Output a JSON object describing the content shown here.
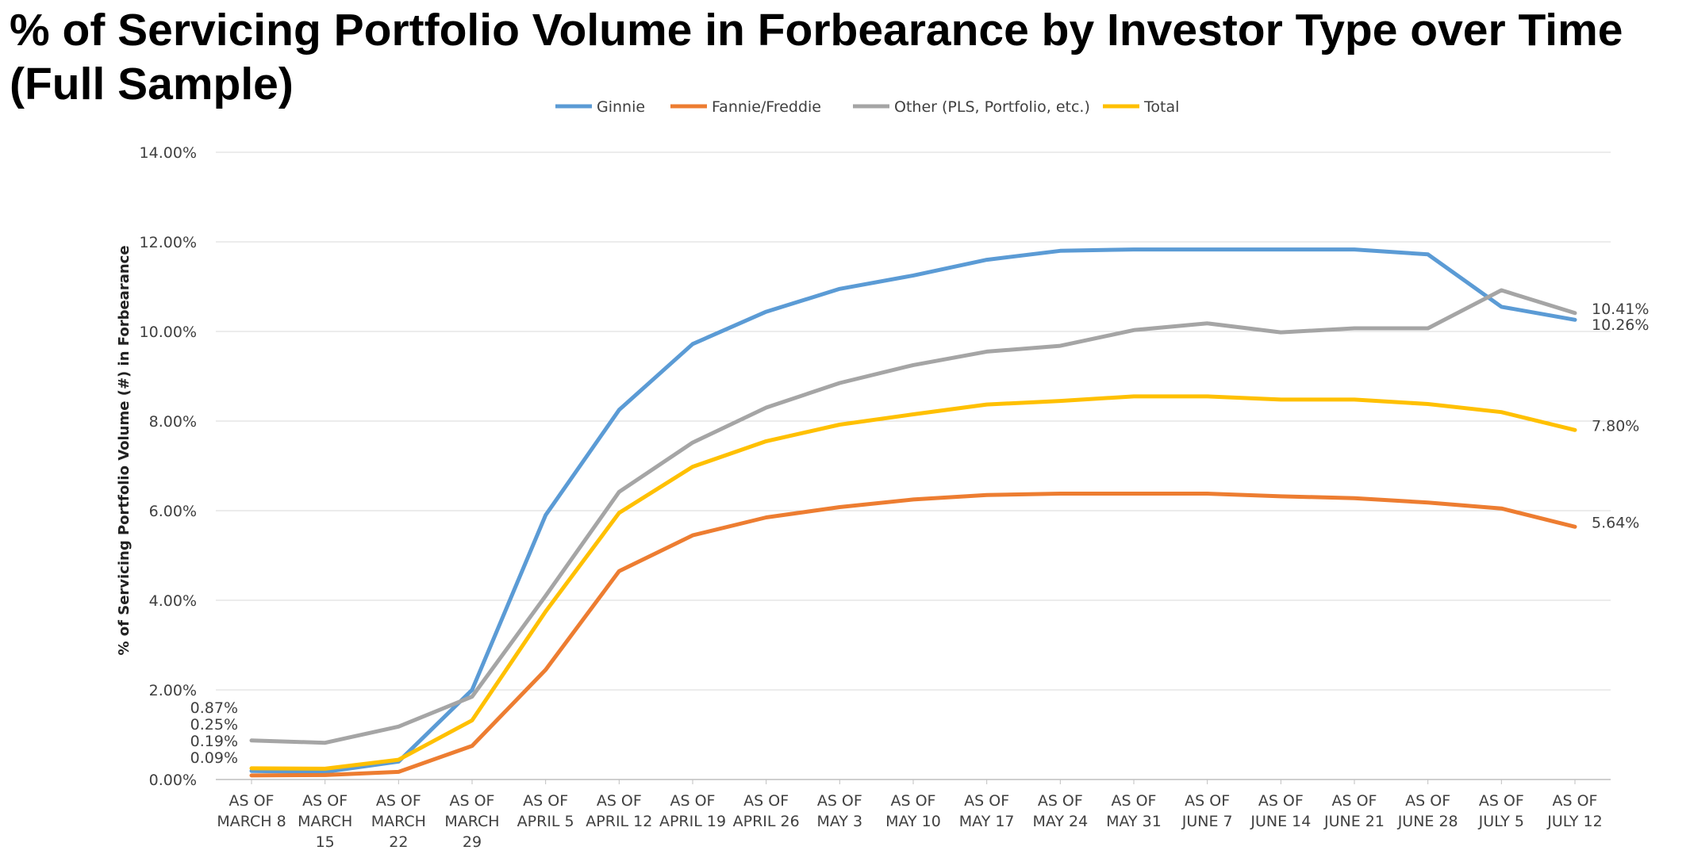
{
  "chart_data": {
    "type": "line",
    "title_lines": [
      "% of Servicing Portfolio Volume in Forbearance by Investor Type over Time",
      "(Full Sample)"
    ],
    "ylabel": "% of Servicing Portfolio Volume (#) in Forbearance",
    "xlabel": "",
    "ylim": [
      0,
      14
    ],
    "y_unit": "%",
    "grid": true,
    "legend_position": "top",
    "categories": [
      "AS OF MARCH 8",
      "AS OF MARCH 15",
      "AS OF MARCH 22",
      "AS OF MARCH 29",
      "AS OF APRIL 5",
      "AS OF APRIL 12",
      "AS OF APRIL 19",
      "AS OF APRIL 26",
      "AS OF MAY 3",
      "AS OF MAY 10",
      "AS OF MAY 17",
      "AS OF MAY 24",
      "AS OF MAY 31",
      "AS OF JUNE 7",
      "AS OF JUNE 14",
      "AS OF JUNE 21",
      "AS OF JUNE 28",
      "AS OF JULY 5",
      "AS OF JULY 12"
    ],
    "category_label_lines": [
      [
        "AS OF",
        "MARCH 8"
      ],
      [
        "AS OF",
        "MARCH",
        "15"
      ],
      [
        "AS OF",
        "MARCH",
        "22"
      ],
      [
        "AS OF",
        "MARCH",
        "29"
      ],
      [
        "AS OF",
        "APRIL 5"
      ],
      [
        "AS OF",
        "APRIL 12"
      ],
      [
        "AS OF",
        "APRIL 19"
      ],
      [
        "AS OF",
        "APRIL 26"
      ],
      [
        "AS OF",
        "MAY 3"
      ],
      [
        "AS OF",
        "MAY 10"
      ],
      [
        "AS OF",
        "MAY 17"
      ],
      [
        "AS OF",
        "MAY 24"
      ],
      [
        "AS OF",
        "MAY 31"
      ],
      [
        "AS OF",
        "JUNE 7"
      ],
      [
        "AS OF",
        "JUNE 14"
      ],
      [
        "AS OF",
        "JUNE 21"
      ],
      [
        "AS OF",
        "JUNE 28"
      ],
      [
        "AS OF",
        "JULY 5"
      ],
      [
        "AS OF",
        "JULY 12"
      ]
    ],
    "y_ticks": [
      {
        "value": 0,
        "label": "0.00%"
      },
      {
        "value": 2,
        "label": "2.00%"
      },
      {
        "value": 4,
        "label": "4.00%"
      },
      {
        "value": 6,
        "label": "6.00%"
      },
      {
        "value": 8,
        "label": "8.00%"
      },
      {
        "value": 10,
        "label": "10.00%"
      },
      {
        "value": 12,
        "label": "12.00%"
      },
      {
        "value": 14,
        "label": "14.00%"
      }
    ],
    "series": [
      {
        "name": "Ginnie",
        "color": "#5b9bd5",
        "values": [
          0.19,
          0.17,
          0.4,
          2.0,
          5.9,
          8.25,
          9.72,
          10.44,
          10.95,
          11.25,
          11.6,
          11.8,
          11.83,
          11.83,
          11.83,
          11.83,
          11.72,
          10.55,
          10.26
        ],
        "start_label": "0.19%",
        "end_label": "10.26%"
      },
      {
        "name": "Fannie/Freddie",
        "color": "#ed7d31",
        "values": [
          0.09,
          0.1,
          0.17,
          0.75,
          2.45,
          4.65,
          5.45,
          5.85,
          6.08,
          6.25,
          6.35,
          6.38,
          6.38,
          6.38,
          6.32,
          6.28,
          6.18,
          6.05,
          5.64
        ],
        "start_label": "0.09%",
        "end_label": "5.64%"
      },
      {
        "name": "Other (PLS, Portfolio, etc.)",
        "color": "#a5a5a5",
        "values": [
          0.87,
          0.82,
          1.18,
          1.85,
          4.1,
          6.42,
          7.52,
          8.3,
          8.85,
          9.25,
          9.55,
          9.68,
          10.03,
          10.18,
          9.98,
          10.07,
          10.07,
          10.92,
          10.41
        ],
        "start_label": "0.87%",
        "end_label": "10.41%"
      },
      {
        "name": "Total",
        "color": "#ffc000",
        "values": [
          0.25,
          0.24,
          0.44,
          1.32,
          3.75,
          5.95,
          6.98,
          7.55,
          7.92,
          8.15,
          8.37,
          8.45,
          8.55,
          8.55,
          8.48,
          8.48,
          8.38,
          8.2,
          7.8
        ],
        "start_label": "0.25%",
        "end_label": "7.80%"
      }
    ]
  }
}
